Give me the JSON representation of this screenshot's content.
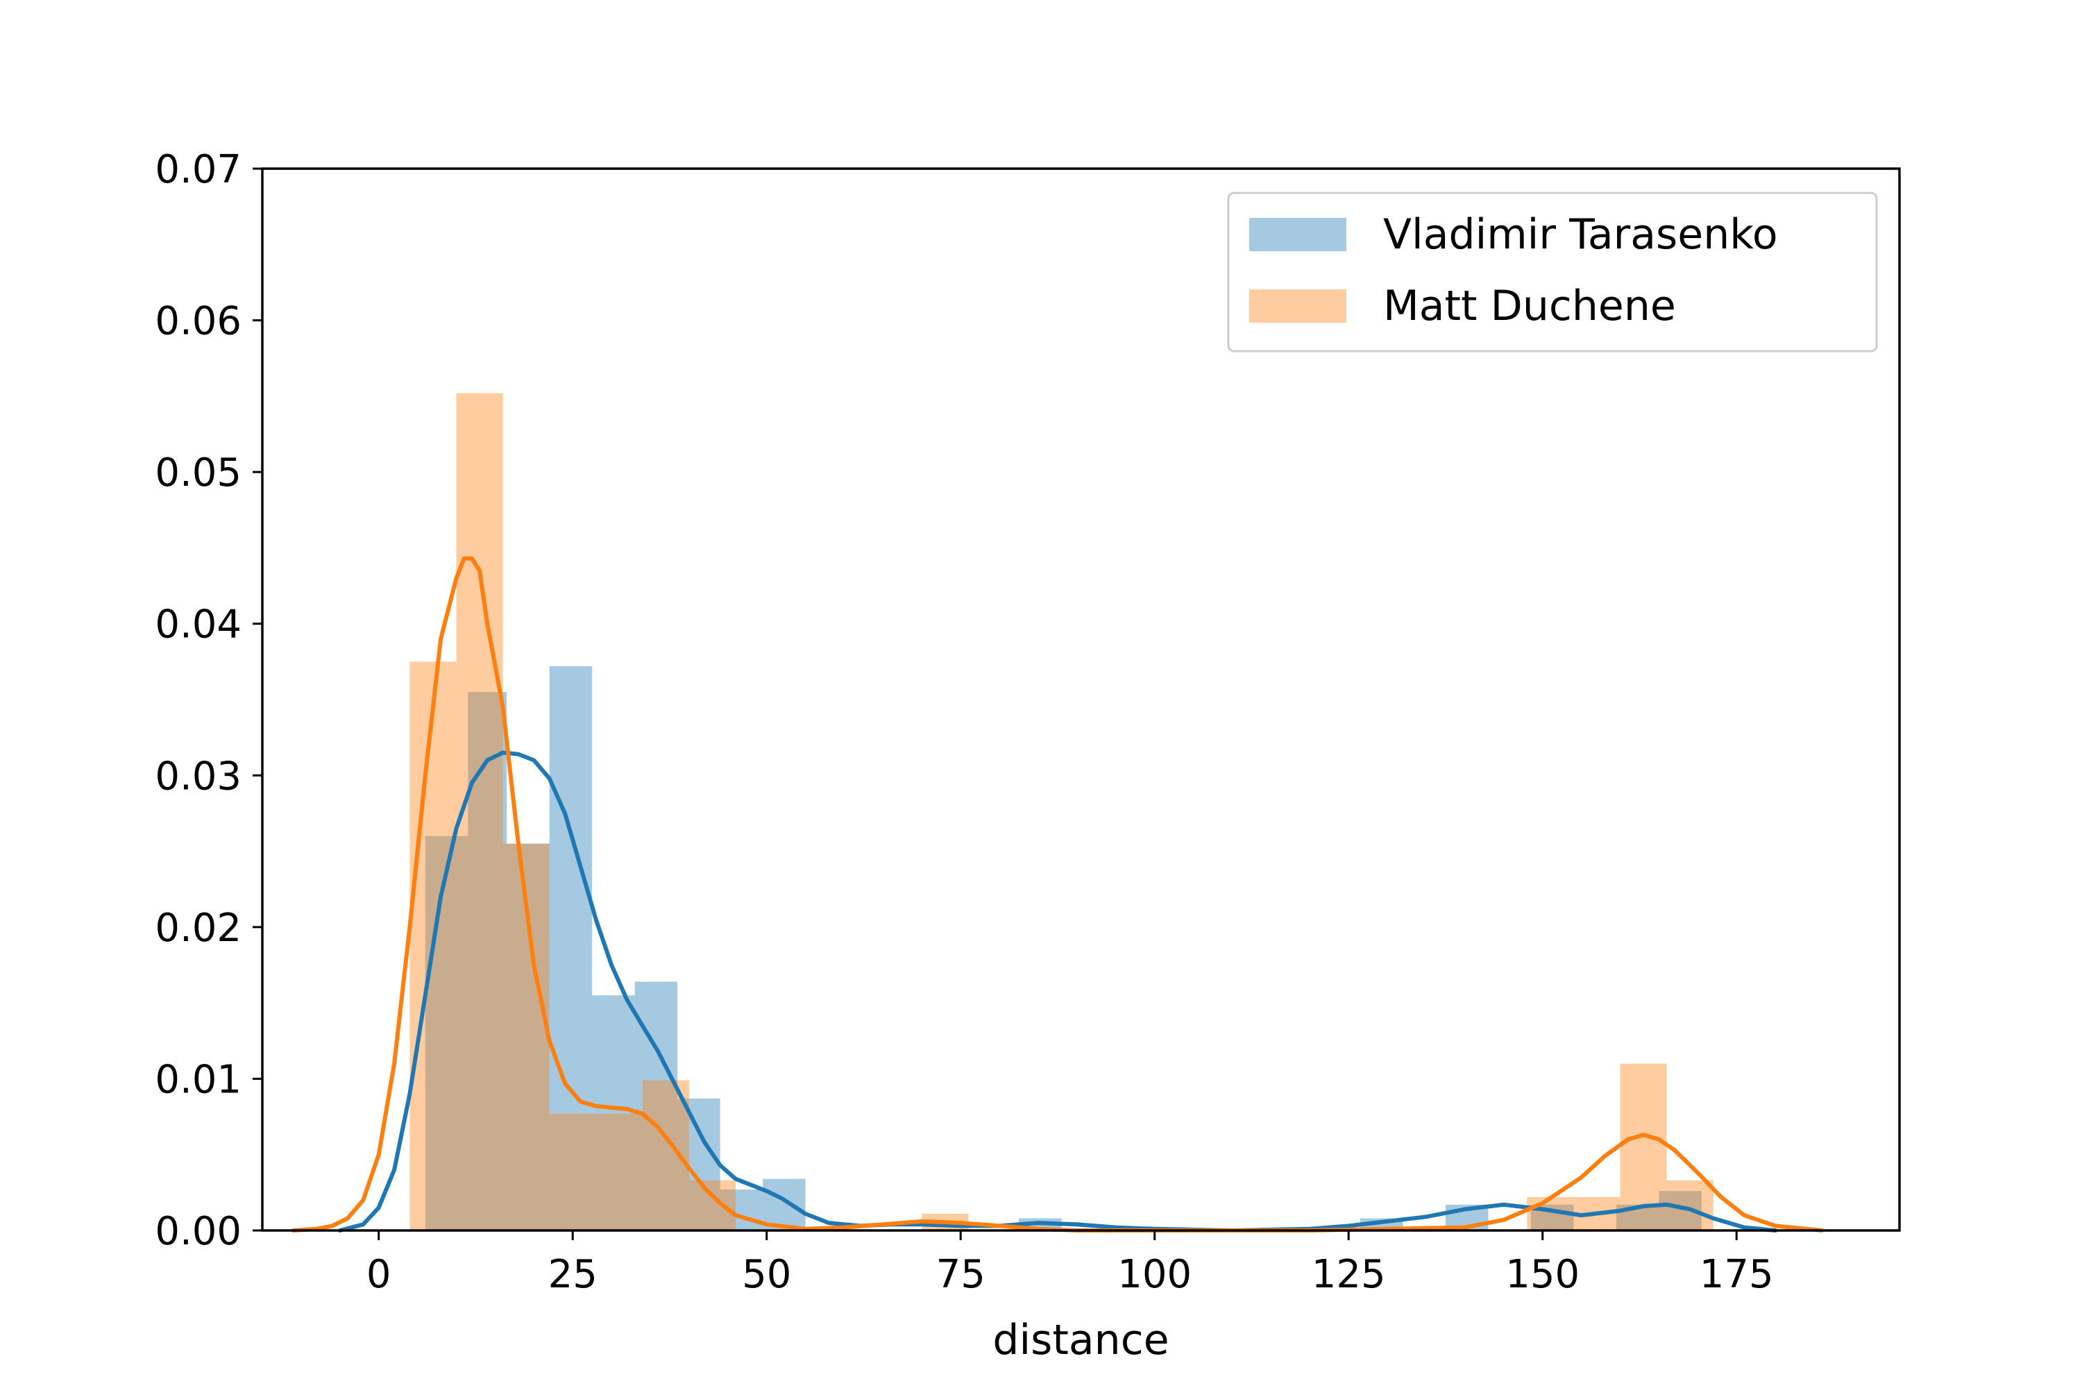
{
  "chart_data": {
    "type": "histogram-kde",
    "title": "",
    "xlabel": "distance",
    "ylabel": "",
    "xlim": [
      -15,
      196
    ],
    "ylim": [
      0,
      0.07
    ],
    "xticks": [
      0,
      25,
      50,
      75,
      100,
      125,
      150,
      175
    ],
    "yticks": [
      0.0,
      0.01,
      0.02,
      0.03,
      0.04,
      0.05,
      0.06,
      0.07
    ],
    "xtick_labels": [
      "0",
      "25",
      "50",
      "75",
      "100",
      "125",
      "150",
      "175"
    ],
    "ytick_labels": [
      "0.00",
      "0.01",
      "0.02",
      "0.03",
      "0.04",
      "0.05",
      "0.06",
      "0.07"
    ],
    "grid": false,
    "legend_position": "top-right",
    "series": [
      {
        "name": "Vladimir Tarasenko",
        "color": "#1f77b4",
        "bins": [
          {
            "x0": 6.0,
            "x1": 11.5,
            "density": 0.026
          },
          {
            "x0": 11.5,
            "x1": 16.5,
            "density": 0.0355
          },
          {
            "x0": 16.5,
            "x1": 22.0,
            "density": 0.0255
          },
          {
            "x0": 22.0,
            "x1": 27.5,
            "density": 0.0372
          },
          {
            "x0": 27.5,
            "x1": 33.0,
            "density": 0.0155
          },
          {
            "x0": 33.0,
            "x1": 38.5,
            "density": 0.0164
          },
          {
            "x0": 38.5,
            "x1": 44.0,
            "density": 0.0087
          },
          {
            "x0": 44.0,
            "x1": 49.5,
            "density": 0.0027
          },
          {
            "x0": 49.5,
            "x1": 55.0,
            "density": 0.0034
          },
          {
            "x0": 82.5,
            "x1": 88.0,
            "density": 0.0008
          },
          {
            "x0": 126.5,
            "x1": 132.0,
            "density": 0.0008
          },
          {
            "x0": 137.5,
            "x1": 143.0,
            "density": 0.0017
          },
          {
            "x0": 148.5,
            "x1": 154.0,
            "density": 0.0017
          },
          {
            "x0": 159.5,
            "x1": 165.0,
            "density": 0.0017
          },
          {
            "x0": 165.0,
            "x1": 170.5,
            "density": 0.0026
          }
        ],
        "kde": {
          "x": [
            -5,
            -2,
            0,
            2,
            4,
            6,
            8,
            10,
            12,
            14,
            16,
            18,
            20,
            22,
            24,
            26,
            28,
            30,
            32,
            34,
            36,
            38,
            40,
            42,
            44,
            46,
            48,
            50,
            52,
            55,
            58,
            62,
            66,
            70,
            75,
            80,
            85,
            90,
            95,
            100,
            110,
            120,
            125,
            130,
            135,
            140,
            145,
            150,
            155,
            160,
            163,
            166,
            169,
            172,
            176,
            180
          ],
          "y": [
            0,
            0.0004,
            0.0015,
            0.004,
            0.009,
            0.0155,
            0.022,
            0.0265,
            0.0295,
            0.031,
            0.0315,
            0.0314,
            0.031,
            0.0298,
            0.0275,
            0.024,
            0.0205,
            0.0175,
            0.0152,
            0.0135,
            0.0118,
            0.0098,
            0.0078,
            0.0058,
            0.0043,
            0.0034,
            0.003,
            0.0026,
            0.0021,
            0.0011,
            0.0005,
            0.0003,
            0.0004,
            0.0004,
            0.0003,
            0.0003,
            0.0005,
            0.0004,
            0.0002,
            0.0001,
            0,
            0.0001,
            0.0003,
            0.0006,
            0.0009,
            0.0014,
            0.0017,
            0.0014,
            0.001,
            0.0013,
            0.0016,
            0.0017,
            0.0014,
            0.0008,
            0.0002,
            0
          ]
        }
      },
      {
        "name": "Matt Duchene",
        "color": "#ff7f0e",
        "bins": [
          {
            "x0": 4.0,
            "x1": 10.0,
            "density": 0.0375
          },
          {
            "x0": 10.0,
            "x1": 16.0,
            "density": 0.0552
          },
          {
            "x0": 16.0,
            "x1": 22.0,
            "density": 0.0255
          },
          {
            "x0": 22.0,
            "x1": 28.0,
            "density": 0.0077
          },
          {
            "x0": 28.0,
            "x1": 34.0,
            "density": 0.0077
          },
          {
            "x0": 34.0,
            "x1": 40.0,
            "density": 0.0099
          },
          {
            "x0": 40.0,
            "x1": 46.0,
            "density": 0.0033
          },
          {
            "x0": 70.0,
            "x1": 76.0,
            "density": 0.0011
          },
          {
            "x0": 148.0,
            "x1": 154.0,
            "density": 0.0022
          },
          {
            "x0": 154.0,
            "x1": 160.0,
            "density": 0.0022
          },
          {
            "x0": 160.0,
            "x1": 166.0,
            "density": 0.011
          },
          {
            "x0": 166.0,
            "x1": 172.0,
            "density": 0.0033
          }
        ],
        "kde": {
          "x": [
            -11,
            -8,
            -6,
            -4,
            -2,
            0,
            2,
            4,
            6,
            8,
            10,
            11,
            12,
            13,
            14,
            16,
            18,
            20,
            22,
            24,
            26,
            28,
            30,
            32,
            34,
            36,
            38,
            40,
            42,
            44,
            46,
            50,
            55,
            60,
            65,
            70,
            75,
            80,
            85,
            90,
            100,
            120,
            140,
            145,
            150,
            155,
            158,
            161,
            163,
            165,
            167,
            170,
            173,
            176,
            180,
            186
          ],
          "y": [
            0,
            0.0001,
            0.0003,
            0.0008,
            0.002,
            0.005,
            0.011,
            0.02,
            0.03,
            0.039,
            0.043,
            0.0443,
            0.0443,
            0.0435,
            0.04,
            0.0345,
            0.0255,
            0.0175,
            0.0125,
            0.0097,
            0.0085,
            0.0082,
            0.0081,
            0.008,
            0.0077,
            0.0068,
            0.0055,
            0.0041,
            0.0028,
            0.0018,
            0.001,
            0.0004,
            0.0001,
            0.0002,
            0.0004,
            0.0006,
            0.0005,
            0.0003,
            0.0001,
            0,
            0,
            0,
            0.0002,
            0.0007,
            0.0018,
            0.0035,
            0.0049,
            0.006,
            0.0063,
            0.006,
            0.0053,
            0.0038,
            0.0022,
            0.001,
            0.0003,
            0
          ]
        }
      }
    ]
  }
}
